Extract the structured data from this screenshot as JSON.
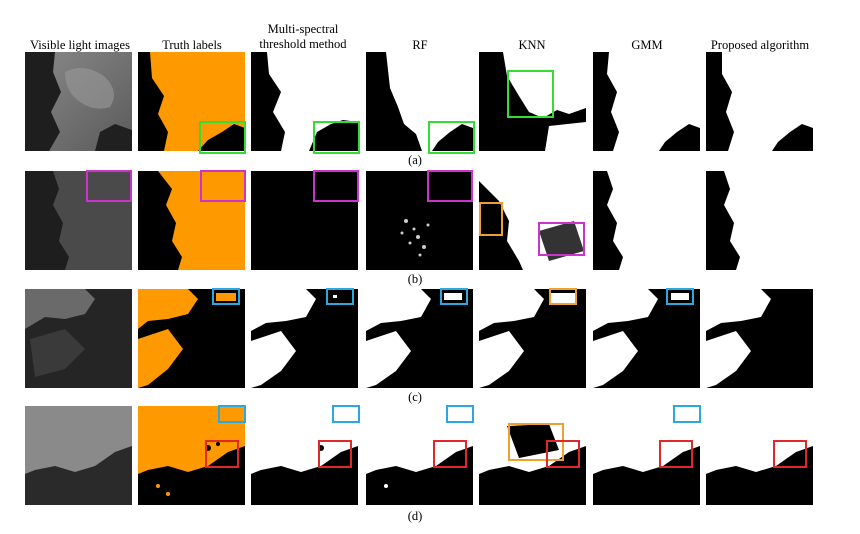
{
  "figure": {
    "columns": [
      "Visible light images",
      "Truth labels",
      "Multi-spectral threshold method",
      "RF",
      "KNN",
      "GMM",
      "Proposed algorithm"
    ],
    "column_lines": [
      [
        "Visible light images"
      ],
      [
        "Truth labels"
      ],
      [
        "Multi-spectral",
        "threshold method"
      ],
      [
        "RF"
      ],
      [
        "KNN"
      ],
      [
        "GMM"
      ],
      [
        "Proposed algorithm"
      ]
    ],
    "rows": [
      "(a)",
      "(b)",
      "(c)",
      "(d)"
    ]
  },
  "colors": {
    "cloud_label": "#FF9900",
    "green_box": "#33DD33",
    "magenta_box": "#CC33CC",
    "orange_box": "#F0A030",
    "blue_box": "#2AA8E0",
    "red_box": "#E02828"
  }
}
